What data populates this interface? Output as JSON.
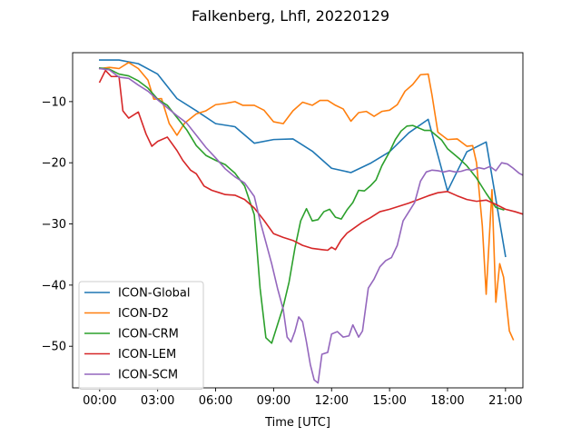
{
  "chart_data": {
    "type": "line",
    "title": "Falkenberg, Lhfl, 20220129",
    "xlabel": "Time [UTC]",
    "ylabel": "",
    "xlim": [
      -1.4,
      21.9
    ],
    "ylim": [
      -56.8,
      -2.0
    ],
    "xticks": [
      {
        "value": 0,
        "label": "00:00"
      },
      {
        "value": 3,
        "label": "03:00"
      },
      {
        "value": 6,
        "label": "06:00"
      },
      {
        "value": 9,
        "label": "09:00"
      },
      {
        "value": 12,
        "label": "12:00"
      },
      {
        "value": 15,
        "label": "15:00"
      },
      {
        "value": 18,
        "label": "18:00"
      },
      {
        "value": 21,
        "label": "21:00"
      }
    ],
    "yticks": [
      {
        "value": -10,
        "label": "−10"
      },
      {
        "value": -20,
        "label": "−20"
      },
      {
        "value": -30,
        "label": "−30"
      },
      {
        "value": -40,
        "label": "−40"
      },
      {
        "value": -50,
        "label": "−50"
      }
    ],
    "legend_position": "lower-left",
    "series": [
      {
        "name": "ICON-Global",
        "color": "#1f77b4",
        "points": [
          [
            0,
            -3.2
          ],
          [
            1,
            -3.2
          ],
          [
            2,
            -3.8
          ],
          [
            3,
            -5.5
          ],
          [
            4,
            -9.5
          ],
          [
            5,
            -11.5
          ],
          [
            6,
            -13.6
          ],
          [
            7,
            -14.1
          ],
          [
            8,
            -16.8
          ],
          [
            9,
            -16.2
          ],
          [
            10,
            -16.1
          ],
          [
            11,
            -18.1
          ],
          [
            12,
            -20.9
          ],
          [
            13,
            -21.6
          ],
          [
            14,
            -20.1
          ],
          [
            15,
            -18.2
          ],
          [
            16,
            -15.1
          ],
          [
            17,
            -12.9
          ],
          [
            18,
            -24.6
          ],
          [
            19,
            -18.2
          ],
          [
            20,
            -16.6
          ],
          [
            21,
            -35.3
          ]
        ]
      },
      {
        "name": "ICON-D2",
        "color": "#ff7f0e",
        "points": [
          [
            0,
            -4.6
          ],
          [
            0.5,
            -4.4
          ],
          [
            1,
            -4.6
          ],
          [
            1.5,
            -3.6
          ],
          [
            2,
            -4.6
          ],
          [
            2.5,
            -6.5
          ],
          [
            2.8,
            -9.6
          ],
          [
            3.2,
            -9.5
          ],
          [
            3.6,
            -13.6
          ],
          [
            4,
            -15.5
          ],
          [
            4.4,
            -13.5
          ],
          [
            5,
            -12.0
          ],
          [
            5.5,
            -11.5
          ],
          [
            6,
            -10.5
          ],
          [
            6.5,
            -10.3
          ],
          [
            7,
            -10.0
          ],
          [
            7.4,
            -10.6
          ],
          [
            8,
            -10.6
          ],
          [
            8.5,
            -11.4
          ],
          [
            9,
            -13.3
          ],
          [
            9.5,
            -13.6
          ],
          [
            10,
            -11.5
          ],
          [
            10.5,
            -10.1
          ],
          [
            11,
            -10.6
          ],
          [
            11.4,
            -9.8
          ],
          [
            11.8,
            -9.8
          ],
          [
            12.2,
            -10.6
          ],
          [
            12.6,
            -11.2
          ],
          [
            13,
            -13.2
          ],
          [
            13.4,
            -11.8
          ],
          [
            13.8,
            -11.6
          ],
          [
            14.2,
            -12.4
          ],
          [
            14.6,
            -11.6
          ],
          [
            15,
            -11.4
          ],
          [
            15.4,
            -10.5
          ],
          [
            15.8,
            -8.3
          ],
          [
            16.2,
            -7.2
          ],
          [
            16.6,
            -5.6
          ],
          [
            17,
            -5.5
          ],
          [
            17.2,
            -9.0
          ],
          [
            17.5,
            -15.0
          ],
          [
            18,
            -16.2
          ],
          [
            18.5,
            -16.1
          ],
          [
            19,
            -17.3
          ],
          [
            19.3,
            -17.2
          ],
          [
            19.5,
            -20.0
          ],
          [
            19.8,
            -30.3
          ],
          [
            20,
            -41.5
          ],
          [
            20.3,
            -24.4
          ],
          [
            20.5,
            -42.8
          ],
          [
            20.7,
            -36.5
          ],
          [
            20.9,
            -38.7
          ],
          [
            21.2,
            -47.5
          ],
          [
            21.4,
            -48.9
          ]
        ]
      },
      {
        "name": "ICON-CRM",
        "color": "#2ca02c",
        "points": [
          [
            0,
            -4.5
          ],
          [
            0.5,
            -4.7
          ],
          [
            1,
            -5.5
          ],
          [
            1.5,
            -5.8
          ],
          [
            2,
            -6.6
          ],
          [
            2.5,
            -7.8
          ],
          [
            3,
            -9.6
          ],
          [
            3.5,
            -10.6
          ],
          [
            4,
            -12.6
          ],
          [
            4.5,
            -14.6
          ],
          [
            5,
            -17.2
          ],
          [
            5.5,
            -18.8
          ],
          [
            6,
            -19.6
          ],
          [
            6.5,
            -20.3
          ],
          [
            7,
            -21.7
          ],
          [
            7.5,
            -23.8
          ],
          [
            8,
            -28.5
          ],
          [
            8.3,
            -40.5
          ],
          [
            8.6,
            -48.6
          ],
          [
            8.9,
            -49.5
          ],
          [
            9.2,
            -46.5
          ],
          [
            9.5,
            -43.5
          ],
          [
            9.8,
            -39.5
          ],
          [
            10.1,
            -34.0
          ],
          [
            10.4,
            -29.5
          ],
          [
            10.7,
            -27.5
          ],
          [
            11.0,
            -29.5
          ],
          [
            11.3,
            -29.3
          ],
          [
            11.6,
            -28.0
          ],
          [
            11.9,
            -27.6
          ],
          [
            12.2,
            -28.9
          ],
          [
            12.5,
            -29.2
          ],
          [
            12.8,
            -27.7
          ],
          [
            13.1,
            -26.5
          ],
          [
            13.4,
            -24.5
          ],
          [
            13.7,
            -24.6
          ],
          [
            14,
            -23.8
          ],
          [
            14.3,
            -22.8
          ],
          [
            14.6,
            -20.5
          ],
          [
            15,
            -18.2
          ],
          [
            15.3,
            -16.2
          ],
          [
            15.6,
            -14.8
          ],
          [
            15.9,
            -14.0
          ],
          [
            16.2,
            -13.9
          ],
          [
            16.5,
            -14.3
          ],
          [
            16.8,
            -14.7
          ],
          [
            17.1,
            -14.7
          ],
          [
            17.4,
            -15.5
          ],
          [
            17.7,
            -16.3
          ],
          [
            18,
            -17.7
          ],
          [
            18.3,
            -18.5
          ],
          [
            18.6,
            -19.3
          ],
          [
            19,
            -20.5
          ],
          [
            19.5,
            -22.5
          ],
          [
            20,
            -25.0
          ],
          [
            20.5,
            -27.3
          ],
          [
            20.9,
            -27.7
          ]
        ]
      },
      {
        "name": "ICON-LEM",
        "color": "#d62728",
        "points": [
          [
            0,
            -6.8
          ],
          [
            0.3,
            -4.9
          ],
          [
            0.6,
            -5.9
          ],
          [
            1,
            -5.9
          ],
          [
            1.2,
            -11.5
          ],
          [
            1.5,
            -12.7
          ],
          [
            2,
            -11.7
          ],
          [
            2.4,
            -15.3
          ],
          [
            2.7,
            -17.3
          ],
          [
            3,
            -16.5
          ],
          [
            3.5,
            -15.8
          ],
          [
            4,
            -18.0
          ],
          [
            4.3,
            -19.6
          ],
          [
            4.7,
            -21.2
          ],
          [
            5,
            -21.8
          ],
          [
            5.4,
            -23.8
          ],
          [
            5.8,
            -24.5
          ],
          [
            6.2,
            -24.9
          ],
          [
            6.5,
            -25.2
          ],
          [
            7,
            -25.3
          ],
          [
            7.5,
            -26.0
          ],
          [
            8,
            -27.4
          ],
          [
            8.5,
            -29.4
          ],
          [
            9,
            -31.6
          ],
          [
            9.5,
            -32.2
          ],
          [
            10,
            -32.7
          ],
          [
            10.5,
            -33.5
          ],
          [
            11,
            -34.0
          ],
          [
            11.5,
            -34.2
          ],
          [
            11.8,
            -34.3
          ],
          [
            12,
            -33.8
          ],
          [
            12.2,
            -34.2
          ],
          [
            12.5,
            -32.6
          ],
          [
            12.8,
            -31.5
          ],
          [
            13.2,
            -30.6
          ],
          [
            13.6,
            -29.7
          ],
          [
            14,
            -29.0
          ],
          [
            14.5,
            -28.0
          ],
          [
            15,
            -27.6
          ],
          [
            15.5,
            -27.1
          ],
          [
            16,
            -26.6
          ],
          [
            16.5,
            -26.0
          ],
          [
            17,
            -25.4
          ],
          [
            17.5,
            -24.9
          ],
          [
            18,
            -24.7
          ],
          [
            18.5,
            -25.4
          ],
          [
            19,
            -26.0
          ],
          [
            19.5,
            -26.3
          ],
          [
            20,
            -26.1
          ],
          [
            20.5,
            -26.8
          ],
          [
            21,
            -27.6
          ],
          [
            21.5,
            -28.0
          ],
          [
            22,
            -28.5
          ],
          [
            22.5,
            -28.4
          ],
          [
            23,
            -28.7
          ],
          [
            23.5,
            -29.0
          ]
        ]
      },
      {
        "name": "ICON-SCM",
        "color": "#9467bd",
        "points": [
          [
            0,
            -4.6
          ],
          [
            0.5,
            -4.8
          ],
          [
            1,
            -6.0
          ],
          [
            1.5,
            -6.2
          ],
          [
            2,
            -7.3
          ],
          [
            2.5,
            -8.3
          ],
          [
            3,
            -9.7
          ],
          [
            3.5,
            -11.0
          ],
          [
            4,
            -12.3
          ],
          [
            4.5,
            -13.5
          ],
          [
            5,
            -15.5
          ],
          [
            5.5,
            -17.5
          ],
          [
            6,
            -19.2
          ],
          [
            6.5,
            -21.0
          ],
          [
            7,
            -22.3
          ],
          [
            7.5,
            -23.3
          ],
          [
            8,
            -25.5
          ],
          [
            8.3,
            -29.5
          ],
          [
            8.6,
            -33.0
          ],
          [
            8.9,
            -36.5
          ],
          [
            9.2,
            -40.5
          ],
          [
            9.5,
            -44.0
          ],
          [
            9.7,
            -48.5
          ],
          [
            9.9,
            -49.3
          ],
          [
            10.1,
            -47.6
          ],
          [
            10.3,
            -45.2
          ],
          [
            10.5,
            -46.0
          ],
          [
            10.7,
            -49.3
          ],
          [
            10.9,
            -53.0
          ],
          [
            11.1,
            -55.5
          ],
          [
            11.3,
            -56.0
          ],
          [
            11.5,
            -51.3
          ],
          [
            11.8,
            -51.0
          ],
          [
            12,
            -48.0
          ],
          [
            12.3,
            -47.6
          ],
          [
            12.6,
            -48.5
          ],
          [
            12.9,
            -48.3
          ],
          [
            13.1,
            -46.5
          ],
          [
            13.4,
            -48.5
          ],
          [
            13.6,
            -47.5
          ],
          [
            13.9,
            -40.5
          ],
          [
            14.2,
            -39.0
          ],
          [
            14.5,
            -37.0
          ],
          [
            14.8,
            -36.0
          ],
          [
            15.1,
            -35.5
          ],
          [
            15.4,
            -33.5
          ],
          [
            15.7,
            -29.5
          ],
          [
            16,
            -28.0
          ],
          [
            16.3,
            -26.5
          ],
          [
            16.6,
            -23.0
          ],
          [
            16.9,
            -21.5
          ],
          [
            17.2,
            -21.2
          ],
          [
            17.5,
            -21.3
          ],
          [
            17.8,
            -21.5
          ],
          [
            18.1,
            -21.3
          ],
          [
            18.4,
            -21.5
          ],
          [
            18.7,
            -21.4
          ],
          [
            19,
            -21.1
          ],
          [
            19.3,
            -21.2
          ],
          [
            19.6,
            -20.8
          ],
          [
            19.9,
            -21.0
          ],
          [
            20.2,
            -20.6
          ],
          [
            20.5,
            -21.3
          ],
          [
            20.8,
            -20.0
          ],
          [
            21.1,
            -20.2
          ],
          [
            21.4,
            -20.9
          ],
          [
            21.7,
            -21.7
          ],
          [
            22,
            -22.2
          ]
        ]
      }
    ]
  }
}
